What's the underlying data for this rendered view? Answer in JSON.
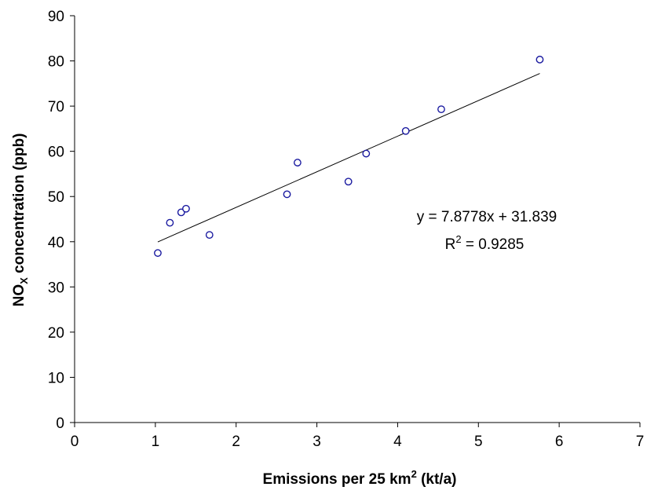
{
  "chart_data": {
    "type": "scatter",
    "x_label": {
      "prefix": "Emissions per 25 km",
      "superscript": "2",
      "suffix": " (kt/a)"
    },
    "y_label": {
      "prefix": "NO",
      "subscript": "X",
      "suffix": " concentration (ppb)"
    },
    "xlim": [
      0,
      7
    ],
    "ylim": [
      0,
      90
    ],
    "x_ticks": [
      0,
      1,
      2,
      3,
      4,
      5,
      6,
      7
    ],
    "y_ticks": [
      0,
      10,
      20,
      30,
      40,
      50,
      60,
      70,
      80,
      90
    ],
    "grid": false,
    "legend": "none",
    "series": [
      {
        "marker": "open-circle",
        "color": "#1a1aa0",
        "points": [
          [
            1.03,
            37.5
          ],
          [
            1.18,
            44.2
          ],
          [
            1.32,
            46.5
          ],
          [
            1.38,
            47.3
          ],
          [
            1.67,
            41.5
          ],
          [
            2.63,
            50.5
          ],
          [
            2.76,
            57.5
          ],
          [
            3.39,
            53.3
          ],
          [
            3.61,
            59.5
          ],
          [
            4.1,
            64.5
          ],
          [
            4.54,
            69.3
          ],
          [
            5.76,
            80.3
          ]
        ]
      }
    ],
    "trendline": {
      "slope": 7.8778,
      "intercept": 31.839,
      "x_range": [
        1.03,
        5.76
      ],
      "color": "#000000"
    },
    "annotations": {
      "equation": "y = 7.8778x + 31.839",
      "r_squared": {
        "prefix": "R",
        "superscript": "2",
        "suffix": " = 0.9285"
      }
    }
  }
}
